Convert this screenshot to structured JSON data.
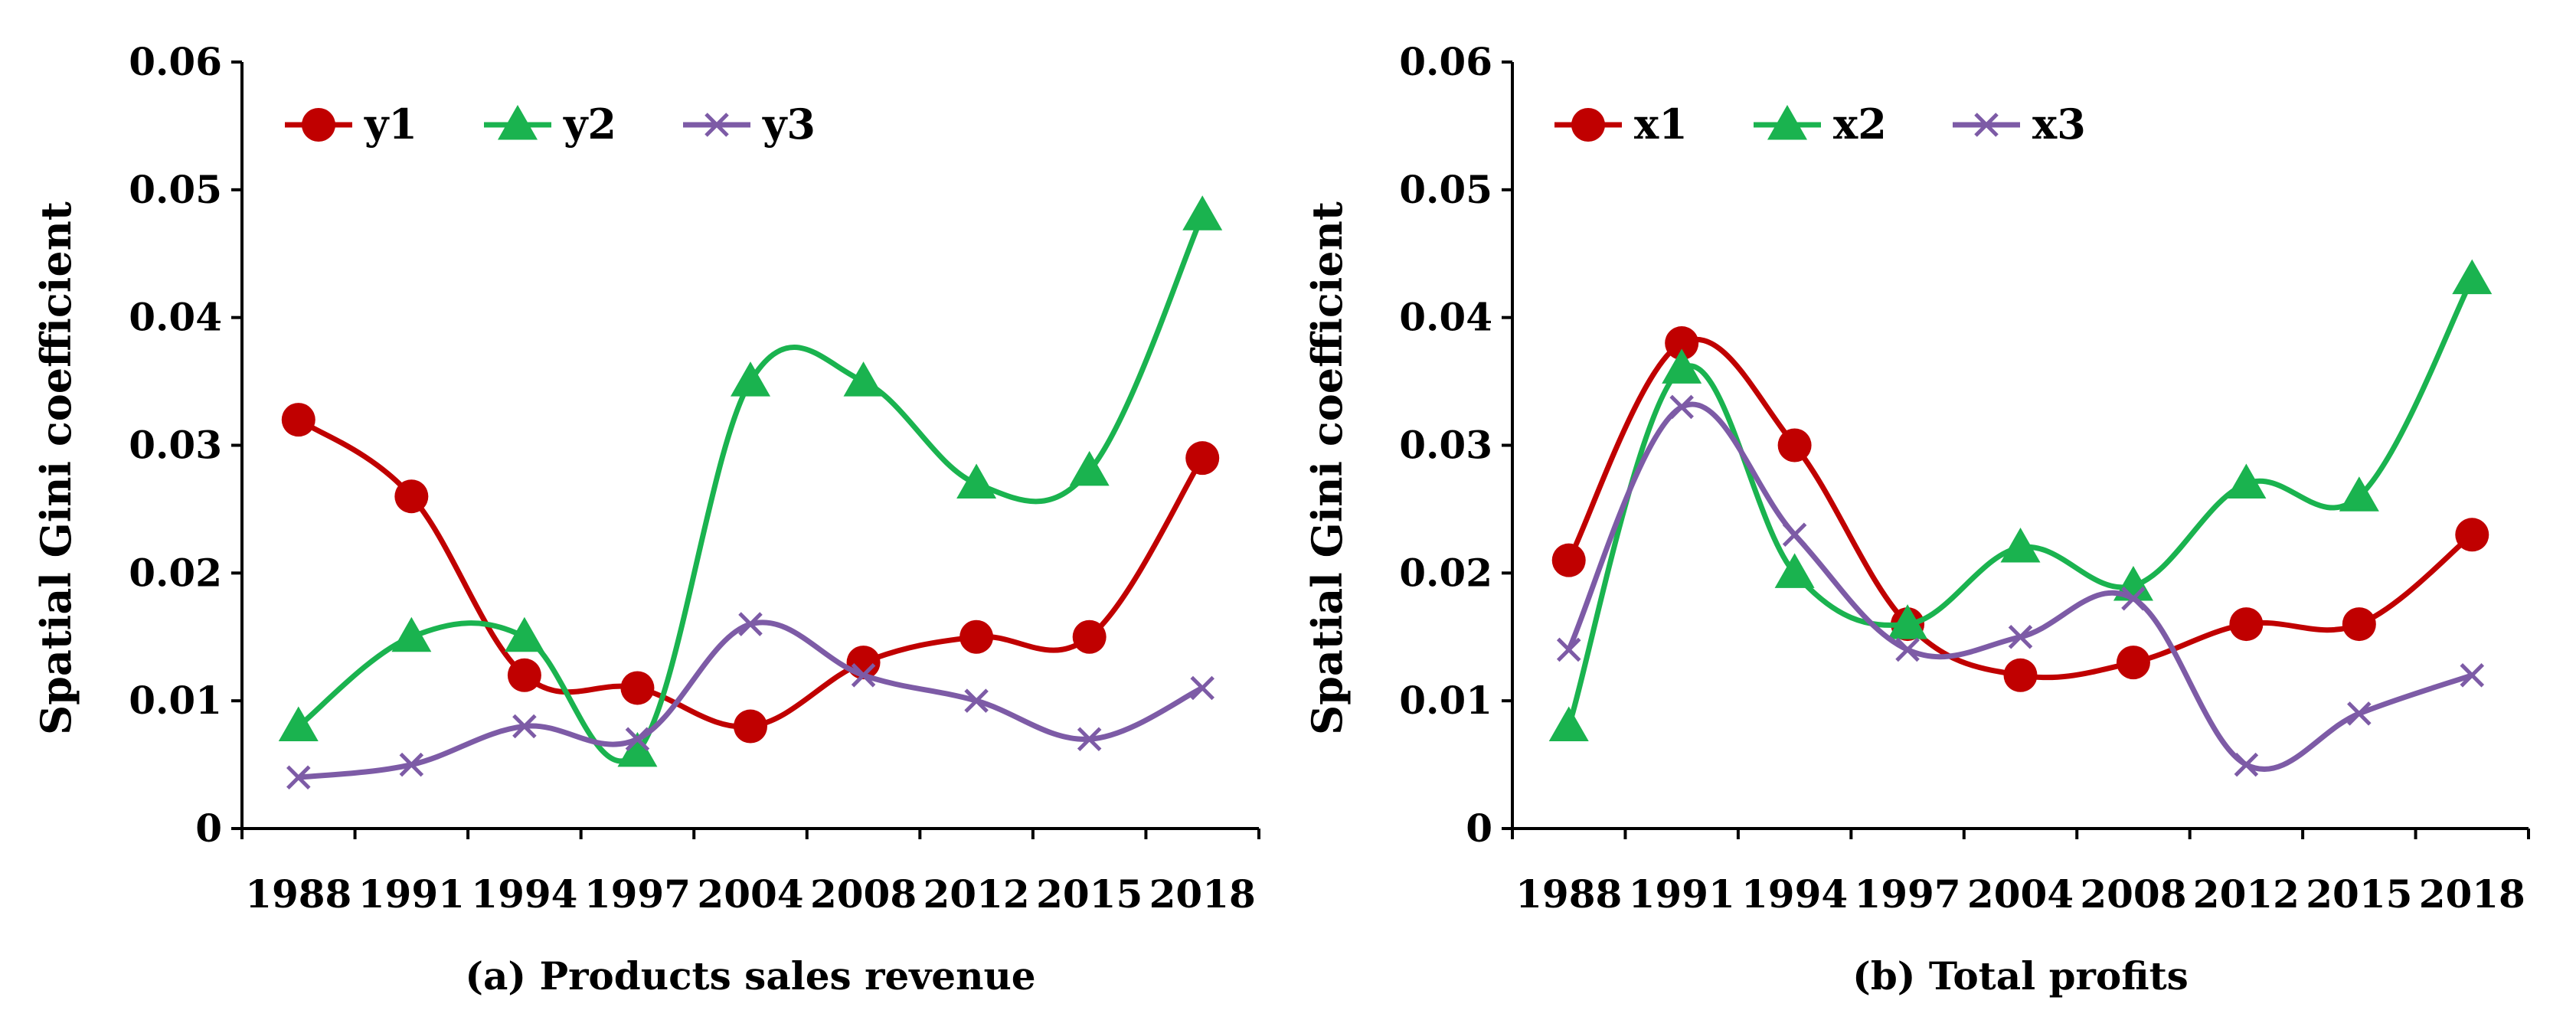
{
  "chart_data": [
    {
      "type": "line",
      "title": "",
      "caption": "(a) Products sales revenue",
      "ylabel": "Spatial Gini coefficient",
      "xlabel": "",
      "categories": [
        "1988",
        "1991",
        "1994",
        "1997",
        "2004",
        "2008",
        "2012",
        "2015",
        "2018"
      ],
      "ylim": [
        0,
        0.06
      ],
      "yticks": [
        0,
        0.01,
        0.02,
        0.03,
        0.04,
        0.05,
        0.06
      ],
      "ytick_labels": [
        "0",
        "0.01",
        "0.02",
        "0.03",
        "0.04",
        "0.05",
        "0.06"
      ],
      "legend_position": "top-left",
      "series": [
        {
          "name": "y1",
          "color": "#c00000",
          "marker": "circle",
          "values": [
            0.032,
            0.026,
            0.012,
            0.011,
            0.008,
            0.013,
            0.015,
            0.015,
            0.029
          ]
        },
        {
          "name": "y2",
          "color": "#1ab34f",
          "marker": "triangle",
          "values": [
            0.008,
            0.015,
            0.015,
            0.006,
            0.035,
            0.035,
            0.027,
            0.028,
            0.048
          ]
        },
        {
          "name": "y3",
          "color": "#7d5ba6",
          "marker": "cross",
          "values": [
            0.004,
            0.005,
            0.008,
            0.007,
            0.016,
            0.012,
            0.01,
            0.007,
            0.011
          ]
        }
      ]
    },
    {
      "type": "line",
      "title": "",
      "caption": "(b) Total profits",
      "ylabel": "Spatial Gini coefficient",
      "xlabel": "",
      "categories": [
        "1988",
        "1991",
        "1994",
        "1997",
        "2004",
        "2008",
        "2012",
        "2015",
        "2018"
      ],
      "ylim": [
        0,
        0.06
      ],
      "yticks": [
        0,
        0.01,
        0.02,
        0.03,
        0.04,
        0.05,
        0.06
      ],
      "ytick_labels": [
        "0",
        "0.01",
        "0.02",
        "0.03",
        "0.04",
        "0.05",
        "0.06"
      ],
      "legend_position": "top-left",
      "series": [
        {
          "name": "x1",
          "color": "#c00000",
          "marker": "circle",
          "values": [
            0.021,
            0.038,
            0.03,
            0.016,
            0.012,
            0.013,
            0.016,
            0.016,
            0.023
          ]
        },
        {
          "name": "x2",
          "color": "#1ab34f",
          "marker": "triangle",
          "values": [
            0.008,
            0.036,
            0.02,
            0.016,
            0.022,
            0.019,
            0.027,
            0.026,
            0.043
          ]
        },
        {
          "name": "x3",
          "color": "#7d5ba6",
          "marker": "cross",
          "values": [
            0.014,
            0.033,
            0.023,
            0.014,
            0.015,
            0.018,
            0.005,
            0.009,
            0.012
          ]
        }
      ]
    }
  ]
}
